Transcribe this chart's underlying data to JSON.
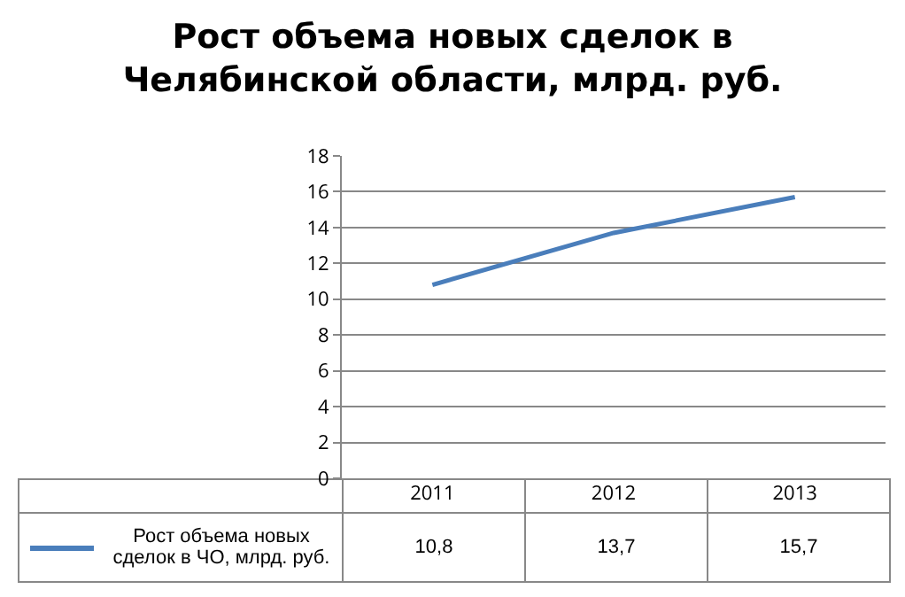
{
  "chart_data": {
    "type": "line",
    "title": "Рост объема новых сделок в Челябинской области, млрд. руб.",
    "categories": [
      "2011",
      "2012",
      "2013"
    ],
    "series": [
      {
        "name": "Рост объема новых сделок в ЧО, млрд. руб.",
        "color": "#4a7ebb",
        "values": [
          10.8,
          13.7,
          15.7
        ],
        "value_labels": [
          "10,8",
          "13,7",
          "15,7"
        ]
      }
    ],
    "ylim": [
      0,
      18
    ],
    "yticks": [
      0,
      2,
      4,
      6,
      8,
      10,
      12,
      14,
      16,
      18
    ],
    "grid": "y",
    "legend": "bottom",
    "marker": "none",
    "line_style": "solid"
  }
}
